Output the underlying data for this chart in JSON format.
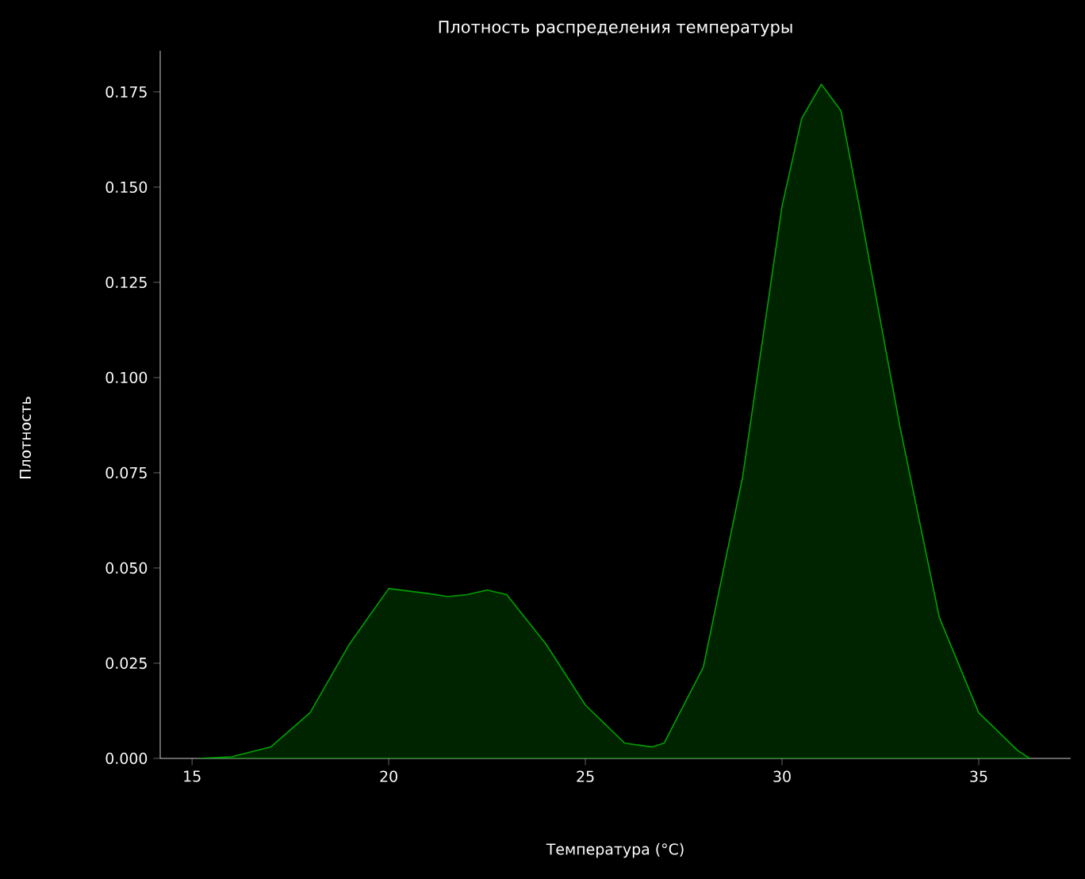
{
  "chart_data": {
    "type": "area",
    "title": "Плотность распределения температуры",
    "xlabel": "Температура (°C)",
    "ylabel": "Плотность",
    "x": [
      15.2,
      16,
      17,
      18,
      19,
      20,
      21,
      21.5,
      22,
      22.5,
      23,
      24,
      25,
      26,
      26.7,
      27,
      28,
      29,
      30,
      30.5,
      31,
      31.5,
      32,
      33,
      34,
      35,
      36,
      36.3
    ],
    "series": [
      {
        "color": "#00a000",
        "values": [
          0,
          0.0004,
          0.003,
          0.012,
          0.03,
          0.0446,
          0.0433,
          0.0425,
          0.043,
          0.0442,
          0.043,
          0.03,
          0.014,
          0.004,
          0.003,
          0.004,
          0.024,
          0.074,
          0.145,
          0.168,
          0.177,
          0.17,
          0.143,
          0.087,
          0.037,
          0.012,
          0.002,
          0
        ]
      }
    ],
    "xlim": [
      14.19,
      37.34
    ],
    "ylim": [
      0,
      0.1858
    ],
    "xticks": [
      15,
      20,
      25,
      30,
      35
    ],
    "yticks": [
      {
        "value": 0,
        "label": "0.000"
      },
      {
        "value": 0.025,
        "label": "0.025"
      },
      {
        "value": 0.05,
        "label": "0.050"
      },
      {
        "value": 0.075,
        "label": "0.075"
      },
      {
        "value": 0.1,
        "label": "0.100"
      },
      {
        "value": 0.125,
        "label": "0.125"
      },
      {
        "value": 0.15,
        "label": "0.150"
      },
      {
        "value": 0.175,
        "label": "0.175"
      }
    ]
  }
}
